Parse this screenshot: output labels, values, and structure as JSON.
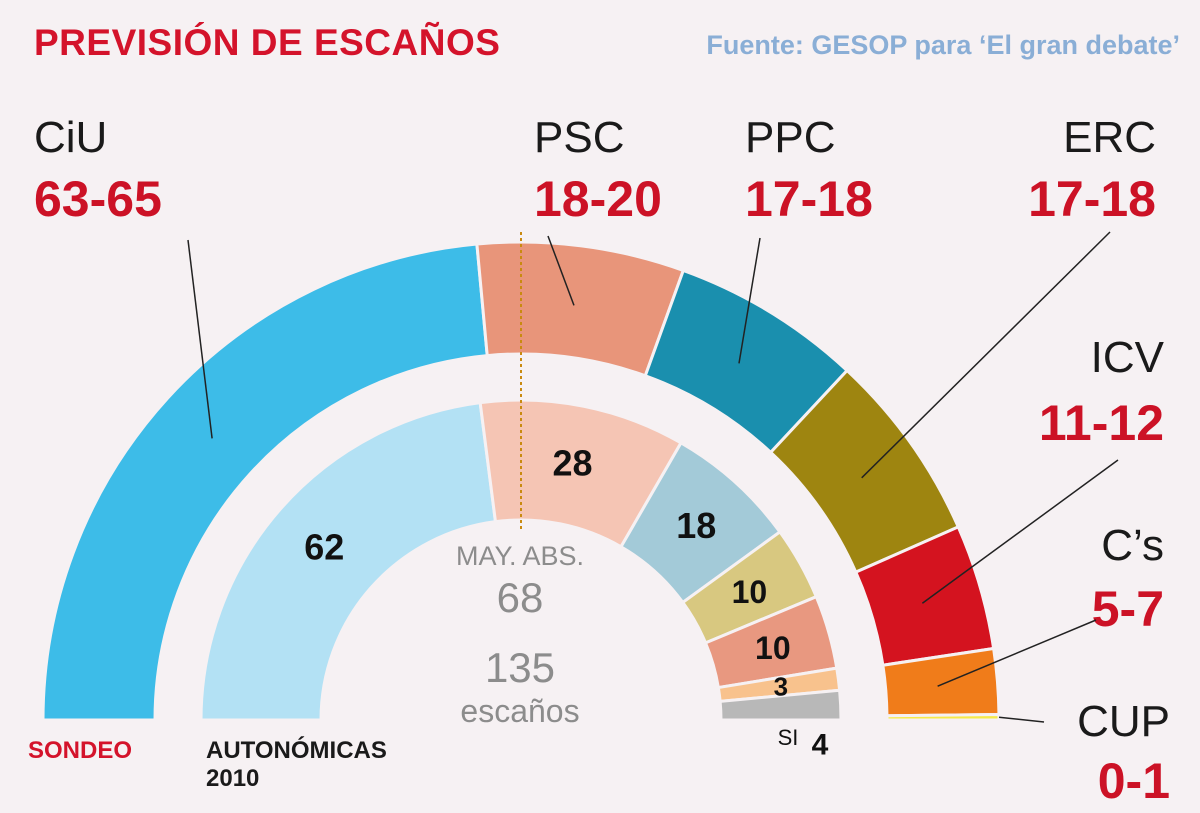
{
  "title": "PREVISIÓN DE ESCAÑOS",
  "source": "Fuente: GESOP para ‘El gran debate’",
  "chart_data": [
    {
      "type": "pie",
      "name": "SONDEO",
      "series": [
        {
          "name": "CiU",
          "range": "63-65",
          "value": 64
        },
        {
          "name": "PSC",
          "range": "18-20",
          "value": 19
        },
        {
          "name": "PPC",
          "range": "17-18",
          "value": 17.5
        },
        {
          "name": "ERC",
          "range": "17-18",
          "value": 17.5
        },
        {
          "name": "ICV",
          "range": "11-12",
          "value": 11.5
        },
        {
          "name": "C’s",
          "range": "5-7",
          "value": 6
        },
        {
          "name": "CUP",
          "range": "0-1",
          "value": 0.5
        }
      ]
    },
    {
      "type": "pie",
      "name": "AUTONÓMICAS 2010",
      "series": [
        {
          "name": "CiU",
          "value": 62,
          "label": "62"
        },
        {
          "name": "PSC",
          "value": 28,
          "label": "28"
        },
        {
          "name": "PPC",
          "value": 18,
          "label": "18"
        },
        {
          "name": "ICV",
          "value": 10,
          "label": "10"
        },
        {
          "name": "ERC",
          "value": 10,
          "label": "10"
        },
        {
          "name": "C’s",
          "value": 3,
          "label": "3"
        },
        {
          "name": "SI",
          "value": 4,
          "label": "4"
        }
      ]
    }
  ],
  "majority": {
    "label": "MAY. ABS.",
    "value": "68"
  },
  "total": {
    "value": "135",
    "unit": "escaños"
  },
  "labels": {
    "sondeo": "SONDEO",
    "autonomicas_line1": "AUTONÓMICAS",
    "autonomicas_line2": "2010",
    "si": "SI"
  },
  "colors": {
    "outer": [
      "#3dbce8",
      "#e8957a",
      "#1a8fae",
      "#9e8510",
      "#d4131f",
      "#f07c1a",
      "#f5e94a"
    ],
    "inner": [
      "#b3e1f4",
      "#f5c5b4",
      "#a3cad8",
      "#d8c880",
      "#e89880",
      "#f8c28d",
      "#b8b8b8"
    ],
    "title": "#d4132b",
    "source": "#8aaed6",
    "value": "#cc1226"
  }
}
